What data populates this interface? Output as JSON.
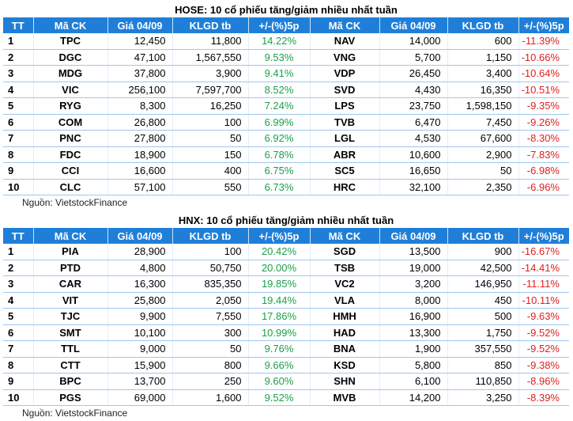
{
  "hose": {
    "title": "HOSE: 10 cổ phiếu tăng/giảm nhiều nhất tuần",
    "headers": [
      "TT",
      "Mã CK",
      "Giá 04/09",
      "KLGD tb",
      "+/-(%)5p",
      "Mã CK",
      "Giá 04/09",
      "KLGD tb",
      "+/-(%)5p"
    ],
    "rows": [
      {
        "tt": "1",
        "up_code": "TPC",
        "up_price": "12,450",
        "up_vol": "11,800",
        "up_pct": "14.22%",
        "down_code": "NAV",
        "down_price": "14,000",
        "down_vol": "600",
        "down_pct": "-11.39%"
      },
      {
        "tt": "2",
        "up_code": "DGC",
        "up_price": "47,100",
        "up_vol": "1,567,550",
        "up_pct": "9.53%",
        "down_code": "VNG",
        "down_price": "5,700",
        "down_vol": "1,150",
        "down_pct": "-10.66%"
      },
      {
        "tt": "3",
        "up_code": "MDG",
        "up_price": "37,800",
        "up_vol": "3,900",
        "up_pct": "9.41%",
        "down_code": "VDP",
        "down_price": "26,450",
        "down_vol": "3,400",
        "down_pct": "-10.64%"
      },
      {
        "tt": "4",
        "up_code": "VIC",
        "up_price": "256,100",
        "up_vol": "7,597,700",
        "up_pct": "8.52%",
        "down_code": "SVD",
        "down_price": "4,430",
        "down_vol": "16,350",
        "down_pct": "-10.51%"
      },
      {
        "tt": "5",
        "up_code": "RYG",
        "up_price": "8,300",
        "up_vol": "16,250",
        "up_pct": "7.24%",
        "down_code": "LPS",
        "down_price": "23,750",
        "down_vol": "1,598,150",
        "down_pct": "-9.35%"
      },
      {
        "tt": "6",
        "up_code": "COM",
        "up_price": "26,800",
        "up_vol": "100",
        "up_pct": "6.99%",
        "down_code": "TVB",
        "down_price": "6,470",
        "down_vol": "7,450",
        "down_pct": "-9.26%"
      },
      {
        "tt": "7",
        "up_code": "PNC",
        "up_price": "27,800",
        "up_vol": "50",
        "up_pct": "6.92%",
        "down_code": "LGL",
        "down_price": "4,530",
        "down_vol": "67,600",
        "down_pct": "-8.30%"
      },
      {
        "tt": "8",
        "up_code": "FDC",
        "up_price": "18,900",
        "up_vol": "150",
        "up_pct": "6.78%",
        "down_code": "ABR",
        "down_price": "10,600",
        "down_vol": "2,900",
        "down_pct": "-7.83%"
      },
      {
        "tt": "9",
        "up_code": "CCI",
        "up_price": "16,600",
        "up_vol": "400",
        "up_pct": "6.75%",
        "down_code": "SC5",
        "down_price": "16,650",
        "down_vol": "50",
        "down_pct": "-6.98%"
      },
      {
        "tt": "10",
        "up_code": "CLC",
        "up_price": "57,100",
        "up_vol": "550",
        "up_pct": "6.73%",
        "down_code": "HRC",
        "down_price": "32,100",
        "down_vol": "2,350",
        "down_pct": "-6.96%"
      }
    ],
    "source": "Nguồn: VietstockFinance"
  },
  "hnx": {
    "title": "HNX: 10 cổ phiếu tăng/giảm nhiều nhất tuần",
    "headers": [
      "TT",
      "Mã CK",
      "Giá 04/09",
      "KLGD tb",
      "+/-(%)5p",
      "Mã CK",
      "Giá 04/09",
      "KLGD tb",
      "+/-(%)5p"
    ],
    "rows": [
      {
        "tt": "1",
        "up_code": "PIA",
        "up_price": "28,900",
        "up_vol": "100",
        "up_pct": "20.42%",
        "down_code": "SGD",
        "down_price": "13,500",
        "down_vol": "900",
        "down_pct": "-16.67%"
      },
      {
        "tt": "2",
        "up_code": "PTD",
        "up_price": "4,800",
        "up_vol": "50,750",
        "up_pct": "20.00%",
        "down_code": "TSB",
        "down_price": "19,000",
        "down_vol": "42,500",
        "down_pct": "-14.41%"
      },
      {
        "tt": "3",
        "up_code": "CAR",
        "up_price": "16,300",
        "up_vol": "835,350",
        "up_pct": "19.85%",
        "down_code": "VC2",
        "down_price": "3,200",
        "down_vol": "146,950",
        "down_pct": "-11.11%"
      },
      {
        "tt": "4",
        "up_code": "VIT",
        "up_price": "25,800",
        "up_vol": "2,050",
        "up_pct": "19.44%",
        "down_code": "VLA",
        "down_price": "8,000",
        "down_vol": "450",
        "down_pct": "-10.11%"
      },
      {
        "tt": "5",
        "up_code": "TJC",
        "up_price": "9,900",
        "up_vol": "7,550",
        "up_pct": "17.86%",
        "down_code": "HMH",
        "down_price": "16,900",
        "down_vol": "500",
        "down_pct": "-9.63%"
      },
      {
        "tt": "6",
        "up_code": "SMT",
        "up_price": "10,100",
        "up_vol": "300",
        "up_pct": "10.99%",
        "down_code": "HAD",
        "down_price": "13,300",
        "down_vol": "1,750",
        "down_pct": "-9.52%"
      },
      {
        "tt": "7",
        "up_code": "TTL",
        "up_price": "9,000",
        "up_vol": "50",
        "up_pct": "9.76%",
        "down_code": "BNA",
        "down_price": "1,900",
        "down_vol": "357,550",
        "down_pct": "-9.52%"
      },
      {
        "tt": "8",
        "up_code": "CTT",
        "up_price": "15,900",
        "up_vol": "800",
        "up_pct": "9.66%",
        "down_code": "KSD",
        "down_price": "5,800",
        "down_vol": "850",
        "down_pct": "-9.38%"
      },
      {
        "tt": "9",
        "up_code": "BPC",
        "up_price": "13,700",
        "up_vol": "250",
        "up_pct": "9.60%",
        "down_code": "SHN",
        "down_price": "6,100",
        "down_vol": "110,850",
        "down_pct": "-8.96%"
      },
      {
        "tt": "10",
        "up_code": "PGS",
        "up_price": "69,000",
        "up_vol": "1,600",
        "up_pct": "9.52%",
        "down_code": "MVB",
        "down_price": "14,200",
        "down_vol": "3,250",
        "down_pct": "-8.39%"
      }
    ],
    "source": "Nguồn: VietstockFinance"
  },
  "colors": {
    "header_bg": "#1f7fd8",
    "header_text": "#ffffff",
    "gain": "#1aa04a",
    "loss": "#e02020",
    "row_rule": "#9fc7ee"
  }
}
